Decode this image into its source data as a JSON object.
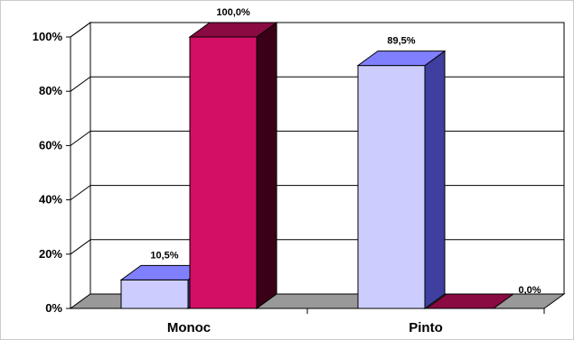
{
  "chart_data": {
    "type": "bar",
    "categories": [
      "Monoc",
      "Pinto"
    ],
    "series": [
      {
        "values": [
          10.5,
          89.5
        ],
        "labels": [
          "10,5%",
          "89,5%"
        ],
        "colors": {
          "front": "#CCCCFF",
          "top": "#8080FF",
          "side": "#3F3F9F"
        }
      },
      {
        "values": [
          100.0,
          0.0
        ],
        "labels": [
          "100,0%",
          "0,0%"
        ],
        "colors": {
          "front": "#D20F64",
          "top": "#8A0A42",
          "side": "#3A0018"
        }
      }
    ],
    "ylim": [
      0,
      100
    ],
    "y_ticks": [
      "0%",
      "20%",
      "40%",
      "60%",
      "80%",
      "100%"
    ],
    "grid": true,
    "three_d": true,
    "floor_color": "#999999"
  }
}
